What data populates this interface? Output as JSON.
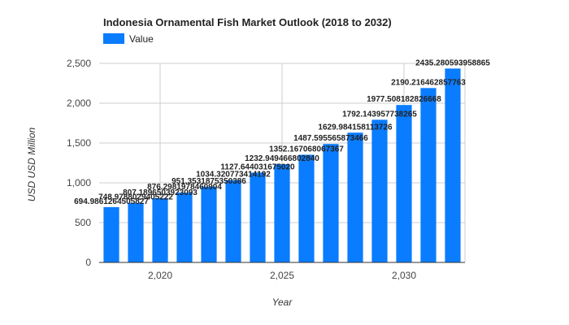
{
  "chart_data": {
    "type": "bar",
    "title": "Indonesia Ornamental Fish Market Outlook (2018 to 2032)",
    "xlabel": "Year",
    "ylabel": "USD USD Million",
    "legend": {
      "entries": [
        "Value"
      ],
      "placement": "top-left"
    },
    "series_color": "#0a7cff",
    "grid": true,
    "ylim": [
      0,
      2500
    ],
    "y_ticks": [
      0,
      500,
      1000,
      1500,
      2000,
      2500
    ],
    "y_tick_labels": [
      "0",
      "500",
      "1,000",
      "1,500",
      "2,000",
      "2,500"
    ],
    "x_ticks": [
      2020,
      2025,
      2030
    ],
    "x_tick_labels": [
      "2,020",
      "2,025",
      "2,030"
    ],
    "xlim": [
      2017.5,
      2032.5
    ],
    "x": [
      2018,
      2019,
      2020,
      2021,
      2022,
      2023,
      2024,
      2025,
      2026,
      2027,
      2028,
      2029,
      2030,
      2031,
      2032
    ],
    "series": [
      {
        "name": "Value",
        "values": [
          694.9861264505827,
          748.9788029405222,
          807.1896503923093,
          876.2981978460904,
          951.3531875350386,
          1034.320773414192,
          1127.64403167502,
          1232.94946680284,
          1352.167068067367,
          1487.595565873466,
          1629.984158113726,
          1792.143957738265,
          1977.508182826668,
          2190.216462857763,
          2435.280593958865
        ],
        "labels": [
          "694.9861264505827",
          "748.9788029405222",
          "807.1896503923093",
          "876.2981978460904",
          "951.3531875350386",
          "1034.320773414192",
          "1127.644031675020",
          "1232.949466802840",
          "1352.167068067367",
          "1487.595565873466",
          "1629.984158113726",
          "1792.143957738265",
          "1977.508182826668",
          "2190.216462857763",
          "2435.280593958865"
        ]
      }
    ]
  }
}
